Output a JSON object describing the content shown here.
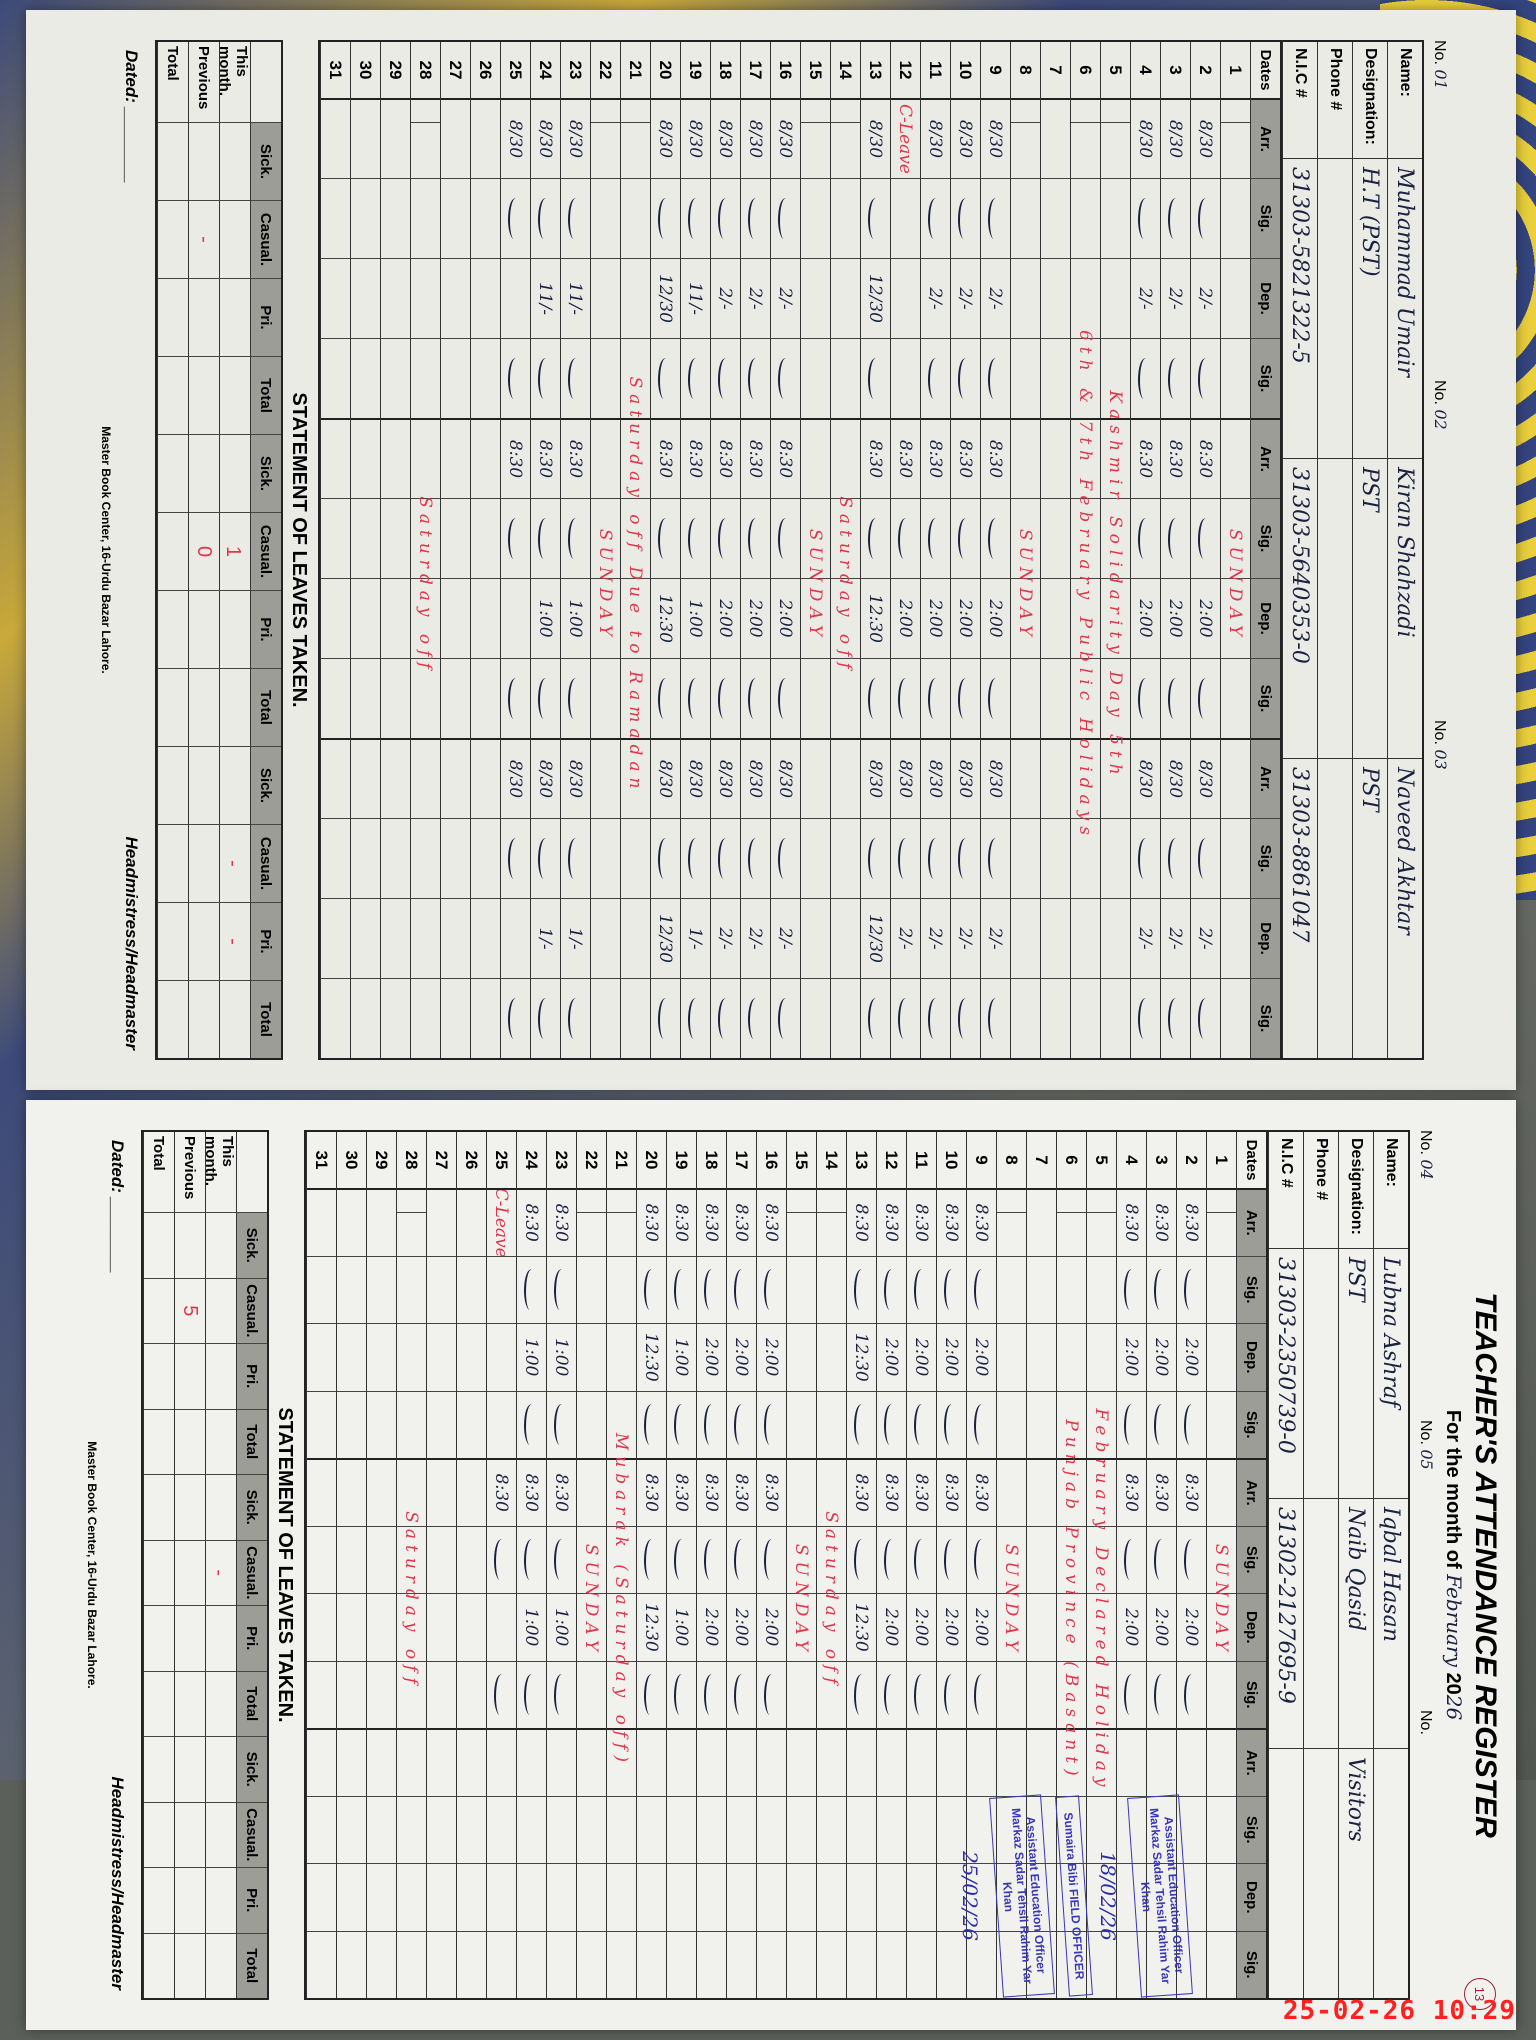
{
  "timestamp": "25-02-26 10:29",
  "register": {
    "title": "TEACHER'S ATTENDANCE REGISTER",
    "month_label": "For the month of",
    "month": "February",
    "year_prefix": "20",
    "year": "26",
    "page_number": "13"
  },
  "labels": {
    "no": "No.",
    "name": "Name:",
    "designation": "Designation:",
    "phone": "Phone #",
    "nic": "N.I.C #",
    "dates": "Dates",
    "arr": "Arr.",
    "sig": "Sig.",
    "dep": "Dep.",
    "leaves_title": "STATEMENT OF LEAVES TAKEN.",
    "sick": "Sick.",
    "casual": "Casual.",
    "pri": "Pri.",
    "total": "Total",
    "this_month": "This month.",
    "previous": "Previous",
    "dated": "Dated: ________",
    "headmistress": "Headmistress/Headmaster",
    "publisher": "Master Book Center, 16-Urdu Bazar Lahore."
  },
  "left_page": {
    "teachers": [
      {
        "no": "01",
        "name": "Muhammad Umair",
        "designation": "H.T (PST)",
        "phone": "",
        "nic": "31303-5821322-5"
      },
      {
        "no": "02",
        "name": "Kiran Shahzadi",
        "designation": "PST",
        "phone": "",
        "nic": "31303-5640353-0"
      },
      {
        "no": "03",
        "name": "Naveed Akhtar",
        "designation": "PST",
        "phone": "",
        "nic": "31303-8861047"
      }
    ],
    "rows": [
      {
        "remark": "SUNDAY"
      },
      {
        "cells": [
          "8/30",
          "2/-",
          "8:30",
          "2:00",
          "8/30",
          "2/-"
        ]
      },
      {
        "cells": [
          "8/30",
          "2/-",
          "8:30",
          "2:00",
          "8/30",
          "2/-"
        ]
      },
      {
        "cells": [
          "8/30",
          "2/-",
          "8:30",
          "2:00",
          "8/30",
          "2/-"
        ]
      },
      {
        "remark": "Kashmir Solidarity Day 5th"
      },
      {
        "remark": "6th & 7th February Public Holidays"
      },
      {},
      {
        "remark": "SUNDAY"
      },
      {
        "cells": [
          "8/30",
          "2/-",
          "8:30",
          "2:00",
          "8/30",
          "2/-"
        ]
      },
      {
        "cells": [
          "8/30",
          "2/-",
          "8:30",
          "2:00",
          "8/30",
          "2/-"
        ]
      },
      {
        "cells": [
          "8/30",
          "2/-",
          "8:30",
          "2:00",
          "8/30",
          "2/-"
        ]
      },
      {
        "cells": [
          "C-Leave",
          "",
          "8:30",
          "2:00",
          "8/30",
          "2/-"
        ]
      },
      {
        "cells": [
          "8/30",
          "12/30",
          "8:30",
          "12:30",
          "8/30",
          "12/30"
        ]
      },
      {
        "remark": "Saturday off"
      },
      {
        "remark": "SUNDAY"
      },
      {
        "cells": [
          "8/30",
          "2/-",
          "8:30",
          "2:00",
          "8/30",
          "2/-"
        ]
      },
      {
        "cells": [
          "8/30",
          "2/-",
          "8:30",
          "2:00",
          "8/30",
          "2/-"
        ]
      },
      {
        "cells": [
          "8/30",
          "2/-",
          "8:30",
          "2:00",
          "8/30",
          "2/-"
        ]
      },
      {
        "cells": [
          "8/30",
          "11/-",
          "8:30",
          "1:00",
          "8/30",
          "1/-"
        ]
      },
      {
        "cells": [
          "8/30",
          "12/30",
          "8:30",
          "12:30",
          "8/30",
          "12/30"
        ]
      },
      {
        "remark": "Saturday off Due to Ramadan"
      },
      {
        "remark": "SUNDAY"
      },
      {
        "cells": [
          "8/30",
          "11/-",
          "8:30",
          "1:00",
          "8/30",
          "1/-"
        ]
      },
      {
        "cells": [
          "8/30",
          "11/-",
          "8:30",
          "1:00",
          "8/30",
          "1/-"
        ]
      },
      {
        "cells": [
          "8/30",
          "",
          "8:30",
          "",
          "8/30",
          ""
        ]
      },
      {},
      {},
      {
        "remark": "Saturday off"
      },
      {},
      {},
      {}
    ],
    "leaves": {
      "this_month": [
        "",
        "",
        "",
        "",
        "",
        "1",
        "",
        "",
        "",
        "-",
        "-",
        ""
      ],
      "previous": [
        "",
        "-",
        "",
        "",
        "",
        "0",
        "",
        "",
        "",
        "",
        "",
        ""
      ],
      "total": [
        "",
        "",
        "",
        "",
        "",
        "",
        "",
        "",
        "",
        "",
        "",
        ""
      ]
    }
  },
  "right_page": {
    "teachers": [
      {
        "no": "04",
        "name": "Lubna Ashraf",
        "designation": "PST",
        "phone": "",
        "nic": "31303-2350739-0"
      },
      {
        "no": "05",
        "name": "Iqbal Hasan",
        "designation": "Naib Qasid",
        "phone": "",
        "nic": "31302-2127695-9"
      },
      {
        "no": "",
        "name": "",
        "designation": "Visitors",
        "phone": "",
        "nic": ""
      }
    ],
    "rows": [
      {
        "remark": "SUNDAY"
      },
      {
        "cells": [
          "8:30",
          "2:00",
          "8:30",
          "2:00",
          "",
          ""
        ]
      },
      {
        "cells": [
          "8:30",
          "2:00",
          "8:30",
          "2:00",
          "",
          ""
        ]
      },
      {
        "cells": [
          "8:30",
          "2:00",
          "8:30",
          "2:00",
          "",
          ""
        ]
      },
      {
        "remark": "February Declared Holiday"
      },
      {
        "remark": "Punjab Province (Basant)"
      },
      {},
      {
        "remark": "SUNDAY"
      },
      {
        "cells": [
          "8:30",
          "2:00",
          "8:30",
          "2:00",
          "",
          ""
        ]
      },
      {
        "cells": [
          "8:30",
          "2:00",
          "8:30",
          "2:00",
          "",
          ""
        ]
      },
      {
        "cells": [
          "8:30",
          "2:00",
          "8:30",
          "2:00",
          "",
          ""
        ]
      },
      {
        "cells": [
          "8:30",
          "2:00",
          "8:30",
          "2:00",
          "",
          ""
        ]
      },
      {
        "cells": [
          "8:30",
          "12:30",
          "8:30",
          "12:30",
          "",
          ""
        ]
      },
      {
        "remark": "Saturday off"
      },
      {
        "remark": "SUNDAY"
      },
      {
        "cells": [
          "8:30",
          "2:00",
          "8:30",
          "2:00",
          "",
          ""
        ]
      },
      {
        "cells": [
          "8:30",
          "2:00",
          "8:30",
          "2:00",
          "",
          ""
        ]
      },
      {
        "cells": [
          "8:30",
          "2:00",
          "8:30",
          "2:00",
          "",
          ""
        ]
      },
      {
        "cells": [
          "8:30",
          "1:00",
          "8:30",
          "1:00",
          "",
          ""
        ]
      },
      {
        "cells": [
          "8:30",
          "12:30",
          "8:30",
          "12:30",
          "",
          ""
        ]
      },
      {
        "remark": "Mubarak (Saturday off)"
      },
      {
        "remark": "SUNDAY"
      },
      {
        "cells": [
          "8:30",
          "1:00",
          "8:30",
          "1:00",
          "",
          ""
        ]
      },
      {
        "cells": [
          "8:30",
          "1:00",
          "8:30",
          "1:00",
          "",
          ""
        ]
      },
      {
        "cells": [
          "C-Leave",
          "",
          "8:30",
          "",
          "",
          ""
        ]
      },
      {},
      {},
      {
        "remark": "Saturday off"
      },
      {},
      {},
      {}
    ],
    "leaves": {
      "this_month": [
        "",
        "",
        "",
        "",
        "",
        "-",
        "",
        "",
        "",
        "",
        "",
        ""
      ],
      "previous": [
        "",
        "5",
        "",
        "",
        "",
        "",
        "",
        "",
        "",
        "",
        "",
        ""
      ],
      "total": [
        "",
        "",
        "",
        "",
        "",
        "",
        "",
        "",
        "",
        "",
        "",
        ""
      ]
    },
    "stamps": [
      {
        "text": "Assistant Education Officer Markaz Sadar Tehsil Rahim Yar Khan",
        "date": "18/02/26"
      },
      {
        "text": "Sumaira Bibi FIELD OFFICER",
        "date": ""
      },
      {
        "text": "Assistant Education Officer Markaz Sadar Tehsil Rahim Yar Khan",
        "date": "25/02/26"
      }
    ]
  },
  "colors": {
    "remark_red": "#e0364a",
    "stamp_blue": "#3737b8",
    "timestamp_red": "#ff2020"
  }
}
